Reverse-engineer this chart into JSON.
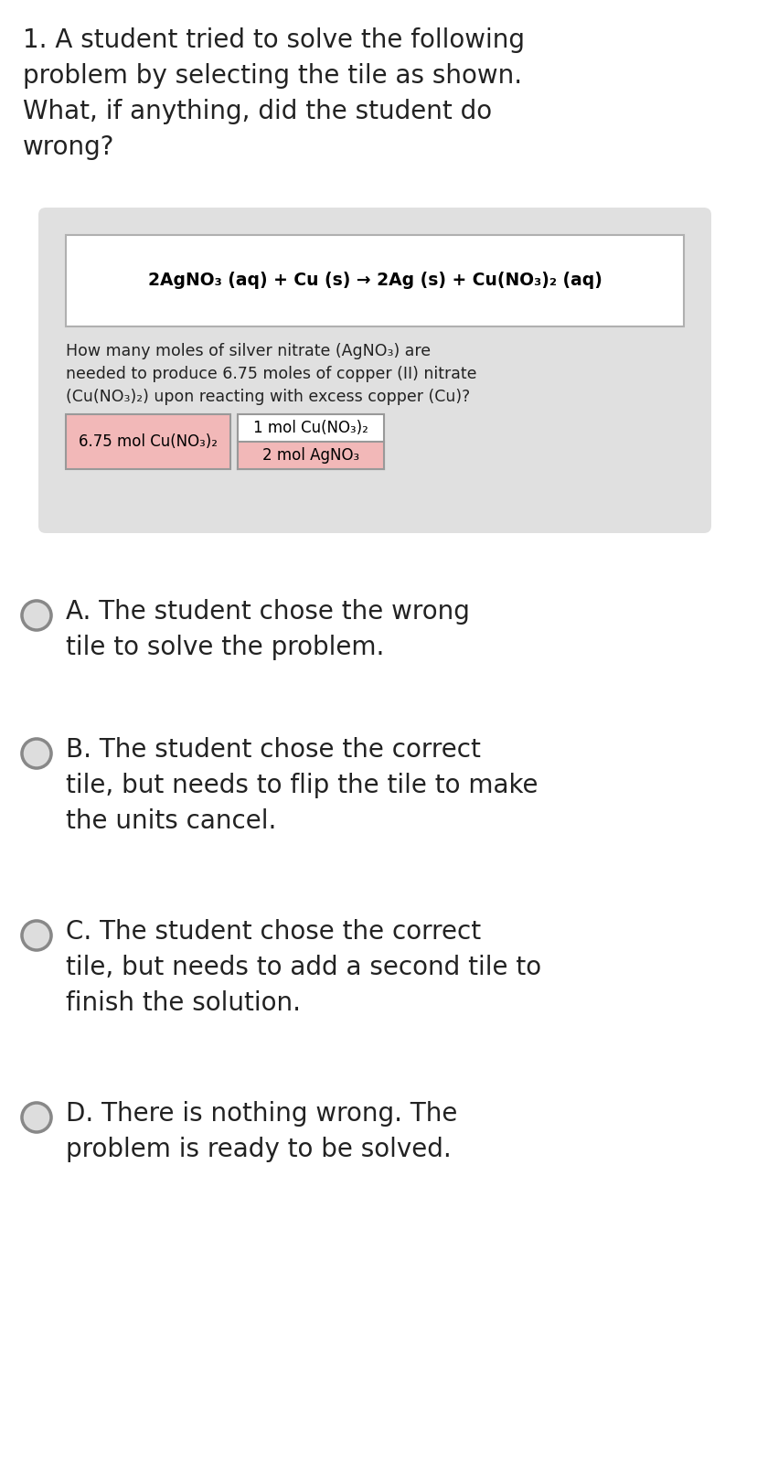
{
  "question_text": "1. A student tried to solve the following\nproblem by selecting the tile as shown.\nWhat, if anything, did the student do\nwrong?",
  "equation": "2AgNO₃ (aq) + Cu (s) → 2Ag (s) + Cu(NO₃)₂ (aq)",
  "problem_text": "How many moles of silver nitrate (AgNO₃) are\nneeded to produce 6.75 moles of copper (II) nitrate\n(Cu(NO₃)₂) upon reacting with excess copper (Cu)?",
  "tile_given": "6.75 mol Cu(NO₃)₂",
  "tile_top": "1 mol Cu(NO₃)₂",
  "tile_bottom": "2 mol AgNO₃",
  "options": [
    "A. The student chose the wrong\ntile to solve the problem.",
    "B. The student chose the correct\ntile, but needs to flip the tile to make\nthe units cancel.",
    "C. The student chose the correct\ntile, but needs to add a second tile to\nfinish the solution.",
    "D. There is nothing wrong. The\nproblem is ready to be solved."
  ],
  "tile_pink": "#f2b8b8",
  "text_color": "#222222",
  "equation_fontsize": 13.5,
  "question_fontsize": 20,
  "problem_fontsize": 12.5,
  "tile_fontsize": 12,
  "option_fontsize": 20
}
